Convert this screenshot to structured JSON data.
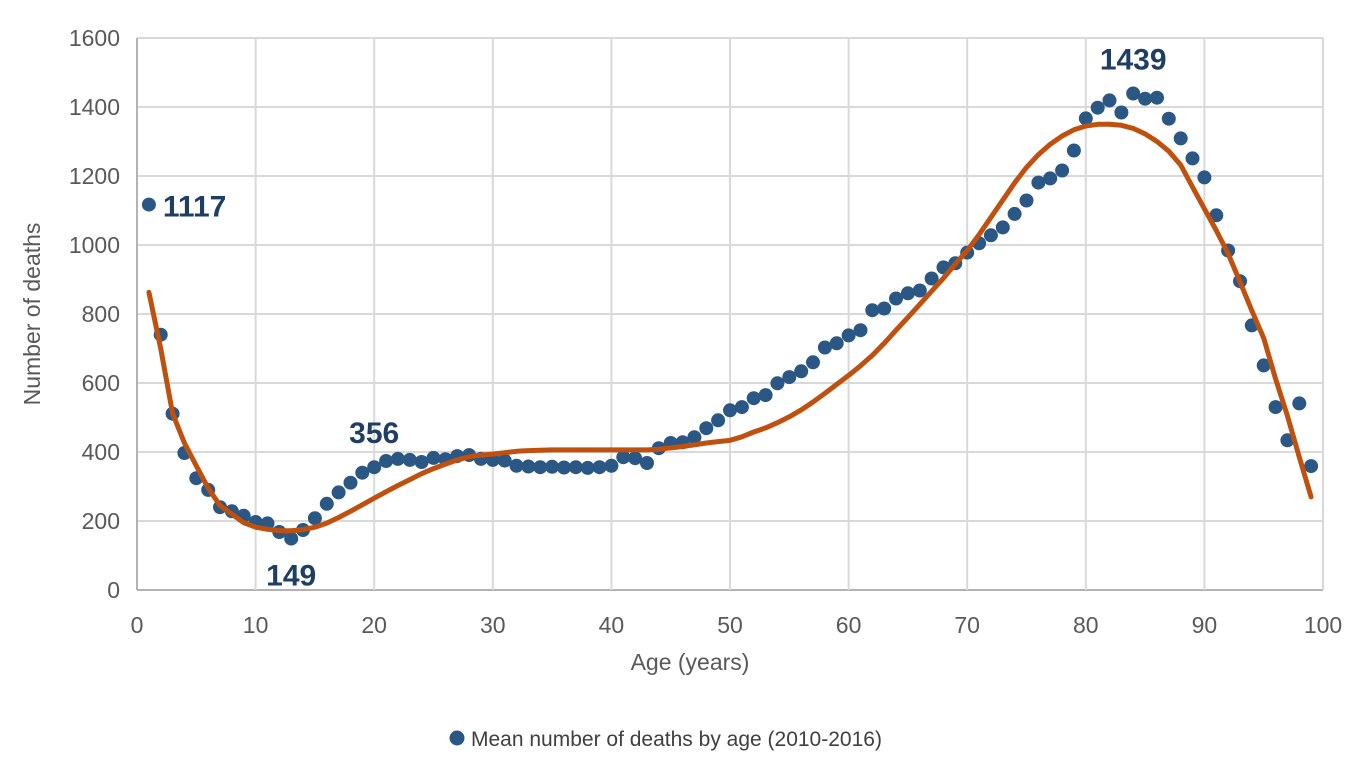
{
  "colors": {
    "background": "#ffffff",
    "scatter_dot": "#2a5783",
    "trend_line": "#c0500e",
    "annotation_text": "#1e3f63",
    "axis_text": "#595959",
    "legend_text": "#404040",
    "gridline": "#d9d9d9",
    "axis_line": "#b3b3b3"
  },
  "legend": {
    "marker": "dot-icon",
    "label": "Mean number of deaths by age (2010-2016)"
  },
  "chart_data": {
    "type": "scatter",
    "title": "",
    "xlabel": "Age (years)",
    "ylabel": "Number of deaths",
    "xlim": [
      0,
      100
    ],
    "ylim": [
      0,
      1600
    ],
    "x_ticks": [
      0,
      10,
      20,
      30,
      40,
      50,
      60,
      70,
      80,
      90,
      100
    ],
    "y_ticks": [
      0,
      200,
      400,
      600,
      800,
      1000,
      1200,
      1400,
      1600
    ],
    "grid": true,
    "legend_position": "bottom-center",
    "series": [
      {
        "name": "Mean number of deaths by age (2010-2016)",
        "type": "scatter",
        "marker": "circle",
        "color": "#2a5783",
        "x": [
          1,
          2,
          3,
          4,
          5,
          6,
          7,
          8,
          9,
          10,
          11,
          12,
          13,
          14,
          15,
          16,
          17,
          18,
          19,
          20,
          21,
          22,
          23,
          24,
          25,
          26,
          27,
          28,
          29,
          30,
          31,
          32,
          33,
          34,
          35,
          36,
          37,
          38,
          39,
          40,
          41,
          42,
          43,
          44,
          45,
          46,
          47,
          48,
          49,
          50,
          51,
          52,
          53,
          54,
          55,
          56,
          57,
          58,
          59,
          60,
          61,
          62,
          63,
          64,
          65,
          66,
          67,
          68,
          69,
          70,
          71,
          72,
          73,
          74,
          75,
          76,
          77,
          78,
          79,
          80,
          81,
          82,
          83,
          84,
          85,
          86,
          87,
          88,
          89,
          90,
          91,
          92,
          93,
          94,
          95,
          96,
          97,
          98,
          99
        ],
        "y": [
          1117,
          740,
          511,
          397,
          324,
          290,
          240,
          228,
          215,
          197,
          193,
          168,
          149,
          174,
          208,
          250,
          283,
          311,
          340,
          356,
          374,
          380,
          377,
          371,
          383,
          379,
          388,
          391,
          380,
          377,
          375,
          360,
          358,
          356,
          357,
          355,
          356,
          354,
          356,
          360,
          385,
          382,
          368,
          411,
          426,
          428,
          443,
          469,
          492,
          521,
          530,
          556,
          565,
          599,
          617,
          634,
          660,
          703,
          715,
          738,
          753,
          811,
          816,
          845,
          860,
          868,
          903,
          935,
          947,
          978,
          1005,
          1028,
          1051,
          1090,
          1129,
          1181,
          1193,
          1216,
          1274,
          1367,
          1398,
          1419,
          1384,
          1439,
          1424,
          1427,
          1366,
          1309,
          1251,
          1196,
          1086,
          984,
          895,
          767,
          651,
          530,
          434,
          541,
          359
        ]
      },
      {
        "name": "trend-line",
        "type": "line",
        "color": "#c0500e",
        "width": 5,
        "x": [
          1,
          2,
          3,
          4,
          5,
          6,
          7,
          8,
          9,
          10,
          11,
          12,
          13,
          14,
          15,
          16,
          17,
          18,
          19,
          20,
          21,
          22,
          23,
          24,
          25,
          26,
          27,
          28,
          29,
          30,
          31,
          32,
          33,
          34,
          35,
          36,
          37,
          38,
          39,
          40,
          41,
          42,
          43,
          44,
          45,
          46,
          47,
          48,
          49,
          50,
          51,
          52,
          53,
          54,
          55,
          56,
          57,
          58,
          59,
          60,
          61,
          62,
          63,
          64,
          65,
          66,
          67,
          68,
          69,
          70,
          71,
          72,
          73,
          74,
          75,
          76,
          77,
          78,
          79,
          80,
          81,
          82,
          83,
          84,
          85,
          86,
          87,
          88,
          89,
          90,
          91,
          92,
          93,
          94,
          95,
          96,
          97,
          98,
          99
        ],
        "y": [
          863,
          700,
          512,
          426,
          360,
          295,
          245,
          220,
          195,
          182,
          176,
          172,
          172,
          175,
          182,
          194,
          210,
          228,
          247,
          266,
          285,
          303,
          320,
          337,
          352,
          365,
          377,
          386,
          391,
          394,
          398,
          402,
          404,
          405,
          406,
          406,
          406,
          406,
          406,
          406,
          406,
          406,
          406,
          408,
          412,
          416,
          421,
          426,
          430,
          434,
          444,
          458,
          470,
          485,
          502,
          522,
          545,
          570,
          596,
          622,
          650,
          680,
          715,
          753,
          790,
          828,
          866,
          904,
          945,
          984,
          1030,
          1080,
          1130,
          1180,
          1225,
          1262,
          1292,
          1316,
          1334,
          1345,
          1350,
          1350,
          1347,
          1338,
          1322,
          1300,
          1272,
          1232,
          1168,
          1105,
          1042,
          975,
          893,
          810,
          730,
          612,
          505,
          385,
          270
        ]
      }
    ],
    "annotations": [
      {
        "x": 1,
        "y": 1117,
        "label": "1117",
        "placement": "right"
      },
      {
        "x": 13,
        "y": 149,
        "label": "149",
        "placement": "below"
      },
      {
        "x": 20,
        "y": 356,
        "label": "356",
        "placement": "above"
      },
      {
        "x": 84,
        "y": 1439,
        "label": "1439",
        "placement": "above"
      }
    ]
  }
}
